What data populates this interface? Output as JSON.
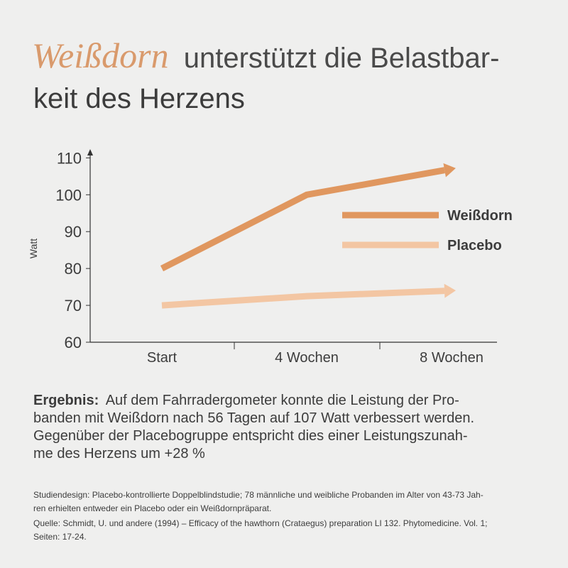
{
  "chart_data": {
    "type": "line",
    "title_highlight": "Weißdorn",
    "title_lines": [
      "unterstützt die Belastbar-",
      "keit des Herzens"
    ],
    "y_label": "Watt",
    "categories": [
      "Start",
      "4 Wochen",
      "8 Wochen"
    ],
    "series": [
      {
        "name": "Weißdorn",
        "color": "#e0975f",
        "values": [
          80,
          100,
          107
        ]
      },
      {
        "name": "Placebo",
        "color": "#f3c6a3",
        "values": [
          70,
          72.5,
          74
        ]
      }
    ],
    "ylim": [
      60,
      112
    ],
    "yticks": [
      60,
      70,
      80,
      90,
      100,
      110
    ],
    "grid": false
  },
  "result": {
    "label": "Ergebnis:",
    "lines": [
      "Auf dem Fahrradergometer konnte die Leistung der Pro-",
      "banden mit Weißdorn nach 56 Tagen auf 107 Watt verbessert werden.",
      "Gegenüber der Placebogruppe entspricht dies einer Leistungszunah-",
      "me des Herzens um +28 %"
    ]
  },
  "notes": [
    "Studiendesign: Placebo-kontrollierte Doppelblindstudie; 78 männliche und weibliche Probanden im Alter von 43-73 Jah-",
    "ren erhielten entweder ein Placebo oder ein Weißdornpräparat.",
    "Quelle: Schmidt, U. und andere (1994) – Efficacy of the hawthorn (Crataegus) preparation LI 132. Phytomedicine. Vol. 1;",
    "Seiten: 17-24."
  ]
}
